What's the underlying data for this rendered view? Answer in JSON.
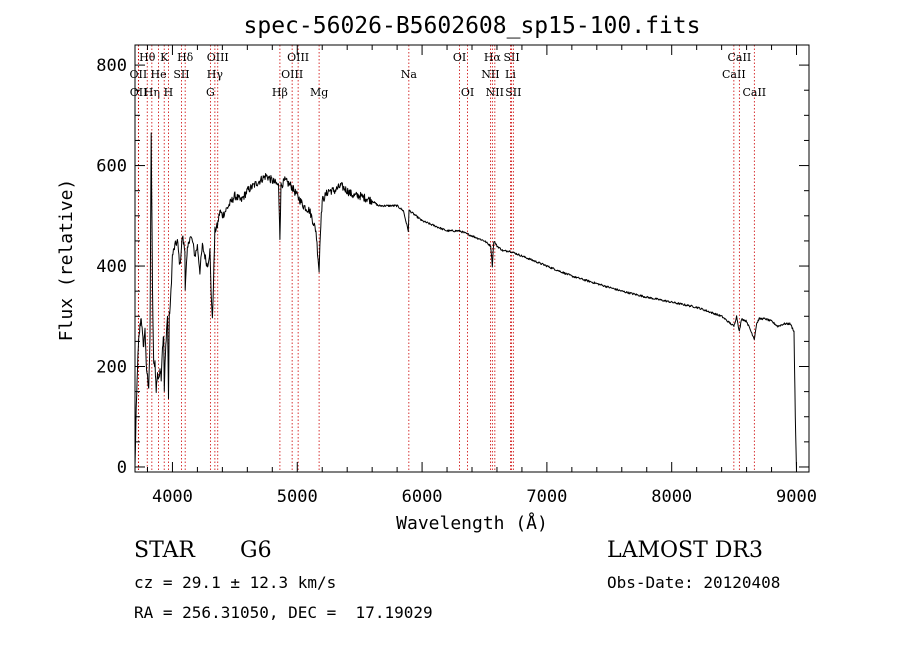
{
  "chart_data": {
    "type": "line",
    "title": "spec-56026-B5602608_sp15-100.fits",
    "xlabel": "Wavelength (Å)",
    "ylabel": "Flux (relative)",
    "xlim": [
      3700,
      9100
    ],
    "ylim": [
      -10,
      840
    ],
    "xticks": [
      4000,
      5000,
      6000,
      7000,
      8000,
      9000
    ],
    "yticks": [
      0,
      200,
      400,
      600,
      800
    ],
    "grid": false,
    "series": [
      {
        "name": "spectrum",
        "x": [
          3700,
          3710,
          3720,
          3730,
          3740,
          3750,
          3760,
          3770,
          3780,
          3790,
          3800,
          3810,
          3820,
          3830,
          3840,
          3850,
          3860,
          3870,
          3880,
          3890,
          3900,
          3910,
          3920,
          3930,
          3935,
          3940,
          3950,
          3960,
          3968,
          3975,
          3985,
          4000,
          4020,
          4040,
          4060,
          4080,
          4100,
          4102,
          4120,
          4140,
          4160,
          4180,
          4200,
          4220,
          4240,
          4260,
          4280,
          4300,
          4310,
          4320,
          4340,
          4360,
          4380,
          4400,
          4450,
          4500,
          4550,
          4600,
          4650,
          4700,
          4750,
          4800,
          4850,
          4861,
          4870,
          4900,
          4950,
          5000,
          5050,
          5100,
          5150,
          5175,
          5185,
          5200,
          5250,
          5300,
          5350,
          5400,
          5450,
          5500,
          5550,
          5600,
          5650,
          5700,
          5750,
          5800,
          5850,
          5890,
          5895,
          5900,
          5950,
          6000,
          6100,
          6200,
          6300,
          6400,
          6500,
          6550,
          6563,
          6575,
          6600,
          6650,
          6700,
          6800,
          6900,
          7000,
          7200,
          7400,
          7600,
          7800,
          8000,
          8200,
          8400,
          8498,
          8520,
          8542,
          8560,
          8600,
          8662,
          8680,
          8700,
          8750,
          8800,
          8850,
          8900,
          8950,
          8980,
          8990,
          9000
        ],
        "y": [
          0,
          110,
          200,
          250,
          280,
          300,
          260,
          240,
          280,
          200,
          180,
          160,
          250,
          670,
          350,
          200,
          210,
          150,
          190,
          170,
          200,
          180,
          240,
          260,
          150,
          200,
          260,
          300,
          140,
          300,
          330,
          420,
          440,
          450,
          400,
          460,
          430,
          360,
          430,
          460,
          450,
          420,
          440,
          390,
          440,
          420,
          400,
          430,
          350,
          290,
          470,
          480,
          510,
          500,
          520,
          540,
          530,
          550,
          560,
          570,
          580,
          570,
          560,
          460,
          560,
          570,
          560,
          540,
          520,
          510,
          470,
          390,
          470,
          530,
          550,
          550,
          560,
          550,
          540,
          540,
          535,
          530,
          520,
          520,
          520,
          520,
          510,
          470,
          510,
          510,
          500,
          490,
          480,
          470,
          470,
          460,
          450,
          440,
          400,
          450,
          440,
          430,
          430,
          420,
          410,
          400,
          380,
          365,
          350,
          338,
          328,
          318,
          300,
          280,
          300,
          270,
          295,
          290,
          255,
          285,
          295,
          295,
          290,
          280,
          285,
          285,
          270,
          100,
          -10
        ]
      }
    ],
    "lines": [
      {
        "label": "Hθ",
        "x": 3798,
        "row": 0
      },
      {
        "label": "OII",
        "x": 3727,
        "row": 1
      },
      {
        "label": "OII",
        "x": 3729,
        "row": 2
      },
      {
        "label": "Hη",
        "x": 3835,
        "row": 2
      },
      {
        "label": "K",
        "x": 3934,
        "row": 0
      },
      {
        "label": "He",
        "x": 3889,
        "row": 1
      },
      {
        "label": "H",
        "x": 3968,
        "row": 2
      },
      {
        "label": "SII",
        "x": 4072,
        "row": 1
      },
      {
        "label": "Hδ",
        "x": 4102,
        "row": 0
      },
      {
        "label": "OIII",
        "x": 4363,
        "row": 0
      },
      {
        "label": "Hγ",
        "x": 4340,
        "row": 1
      },
      {
        "label": "G",
        "x": 4304,
        "row": 2
      },
      {
        "label": "Hβ",
        "x": 4861,
        "row": 2
      },
      {
        "label": "OIII",
        "x": 5007,
        "row": 0
      },
      {
        "label": "OIII",
        "x": 4959,
        "row": 1
      },
      {
        "label": "Mg",
        "x": 5175,
        "row": 2
      },
      {
        "label": "Na",
        "x": 5894,
        "row": 1
      },
      {
        "label": "OI",
        "x": 6300,
        "row": 0
      },
      {
        "label": "OI",
        "x": 6364,
        "row": 2
      },
      {
        "label": "Hα",
        "x": 6563,
        "row": 0
      },
      {
        "label": "NII",
        "x": 6548,
        "row": 1
      },
      {
        "label": "NII",
        "x": 6583,
        "row": 2
      },
      {
        "label": "SII",
        "x": 6717,
        "row": 0
      },
      {
        "label": "Li",
        "x": 6708,
        "row": 1
      },
      {
        "label": "SII",
        "x": 6731,
        "row": 2
      },
      {
        "label": "CaII",
        "x": 8542,
        "row": 0
      },
      {
        "label": "CaII",
        "x": 8498,
        "row": 1
      },
      {
        "label": "CaII",
        "x": 8662,
        "row": 2
      }
    ]
  },
  "info": {
    "class": "STAR",
    "subclass": "G6",
    "survey": "LAMOST DR3",
    "cz": "cz = 29.1 ± 12.3 km/s",
    "obs_date": "Obs-Date: 20120408",
    "coords": "RA = 256.31050, DEC =  17.19029"
  }
}
